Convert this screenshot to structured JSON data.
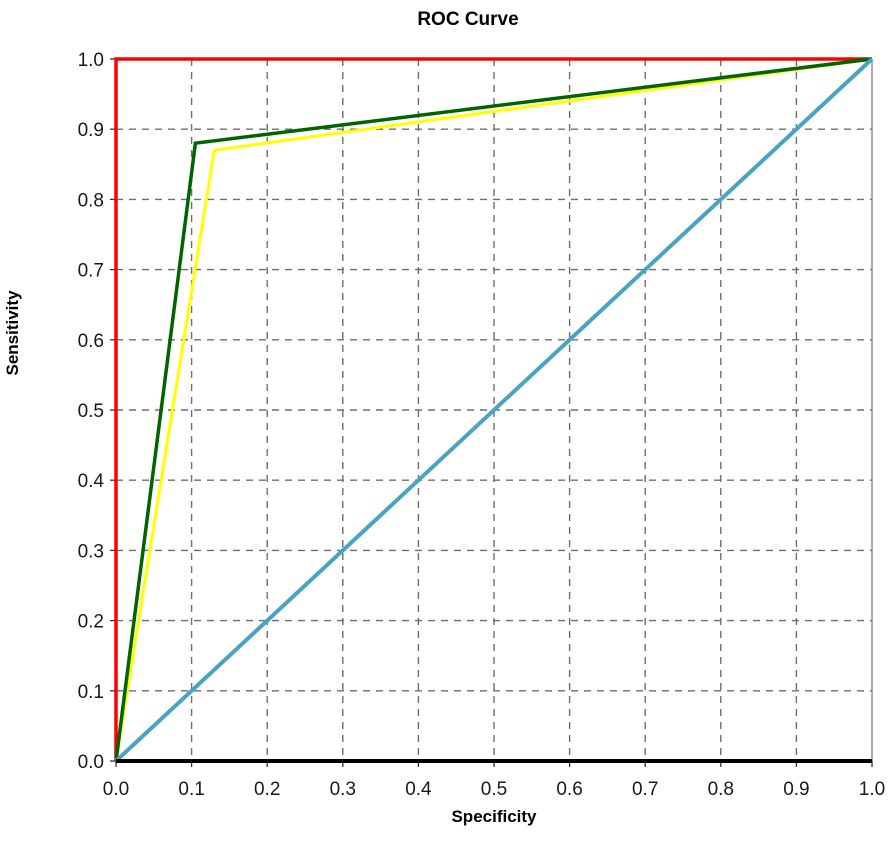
{
  "chart_data": {
    "type": "line",
    "title": "ROC Curve",
    "xlabel": "Specificity",
    "ylabel": "Sensitivity",
    "xlim": [
      0.0,
      1.0
    ],
    "ylim": [
      0.0,
      1.0
    ],
    "x_ticks": [
      "0.0",
      "0.1",
      "0.2",
      "0.3",
      "0.4",
      "0.5",
      "0.6",
      "0.7",
      "0.8",
      "0.9",
      "1.0"
    ],
    "y_ticks": [
      "0.0",
      "0.1",
      "0.2",
      "0.3",
      "0.4",
      "0.5",
      "0.6",
      "0.7",
      "0.8",
      "0.9",
      "1.0"
    ],
    "grid": true,
    "grid_style": "dashed",
    "legend": "none",
    "series": [
      {
        "color": "#ff0000",
        "x": [
          0.0,
          0.0,
          1.0
        ],
        "y": [
          0.0,
          1.0,
          1.0
        ]
      },
      {
        "color": "#ffff00",
        "x": [
          0.0,
          0.13,
          1.0
        ],
        "y": [
          0.0,
          0.87,
          1.0
        ]
      },
      {
        "color": "#006400",
        "x": [
          0.0,
          0.105,
          1.0
        ],
        "y": [
          0.0,
          0.88,
          1.0
        ]
      },
      {
        "color": "#4ba3c3",
        "x": [
          0.0,
          1.0
        ],
        "y": [
          0.0,
          1.0
        ]
      }
    ]
  }
}
